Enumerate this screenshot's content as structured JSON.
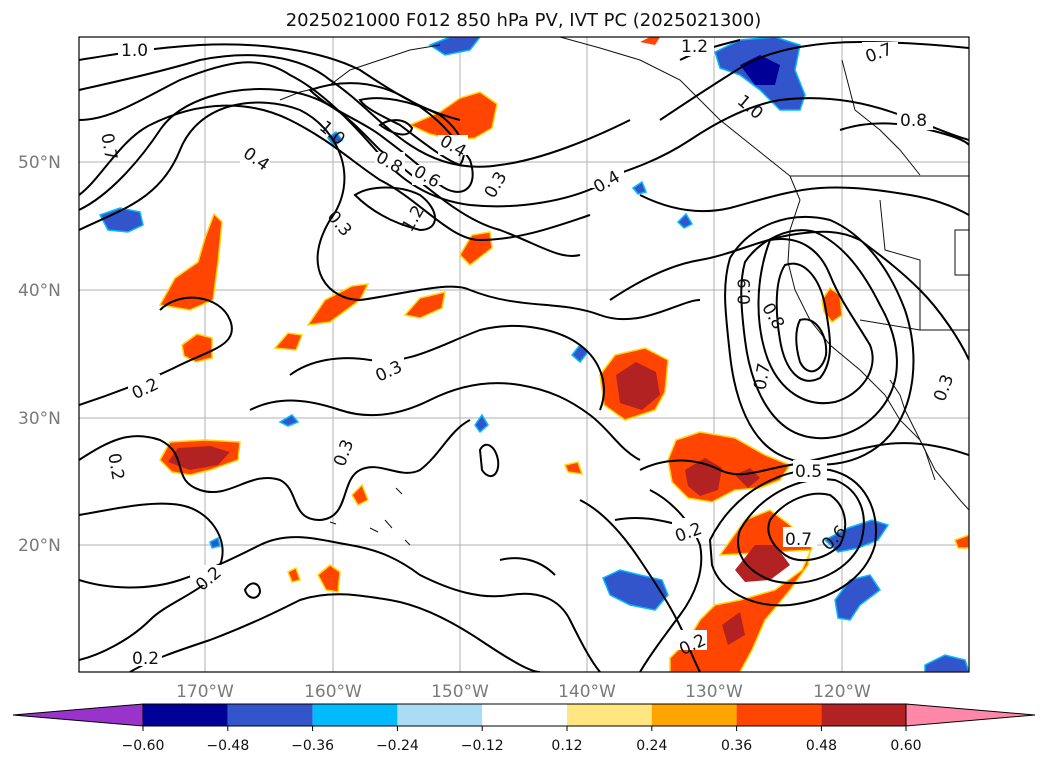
{
  "title": "2025021000 F012 850 hPa PV, IVT PC (2025021300)",
  "map": {
    "lon_labels": [
      "170°W",
      "160°W",
      "150°W",
      "140°W",
      "130°W",
      "120°W"
    ],
    "lat_labels": [
      "50°N",
      "40°N",
      "30°N",
      "20°N"
    ],
    "contour_labels": [
      "1.0",
      "1.2",
      "0.7",
      "0.8",
      "1.0",
      "0.7",
      "0.4",
      "0.4",
      "0.8",
      "0.6",
      "0.3",
      "1.0",
      "1.2",
      "0.3",
      "0.4",
      "0.9",
      "0.8",
      "0.7",
      "0.2",
      "0.3",
      "0.3",
      "0.2",
      "0.2",
      "0.5",
      "0.2",
      "0.7",
      "0.6",
      "0.3",
      "0.2",
      "0.2"
    ]
  },
  "colorbar": {
    "colors": [
      "#9933cc",
      "#000099",
      "#3355cc",
      "#00bbff",
      "#aaddf5",
      "#ffffff",
      "#ffe680",
      "#ffa500",
      "#ff4500",
      "#b22222",
      "#ff88aa"
    ],
    "tick_labels": [
      "−0.60",
      "−0.48",
      "−0.36",
      "−0.24",
      "−0.12",
      "0.12",
      "0.24",
      "0.36",
      "0.48",
      "0.60"
    ]
  }
}
